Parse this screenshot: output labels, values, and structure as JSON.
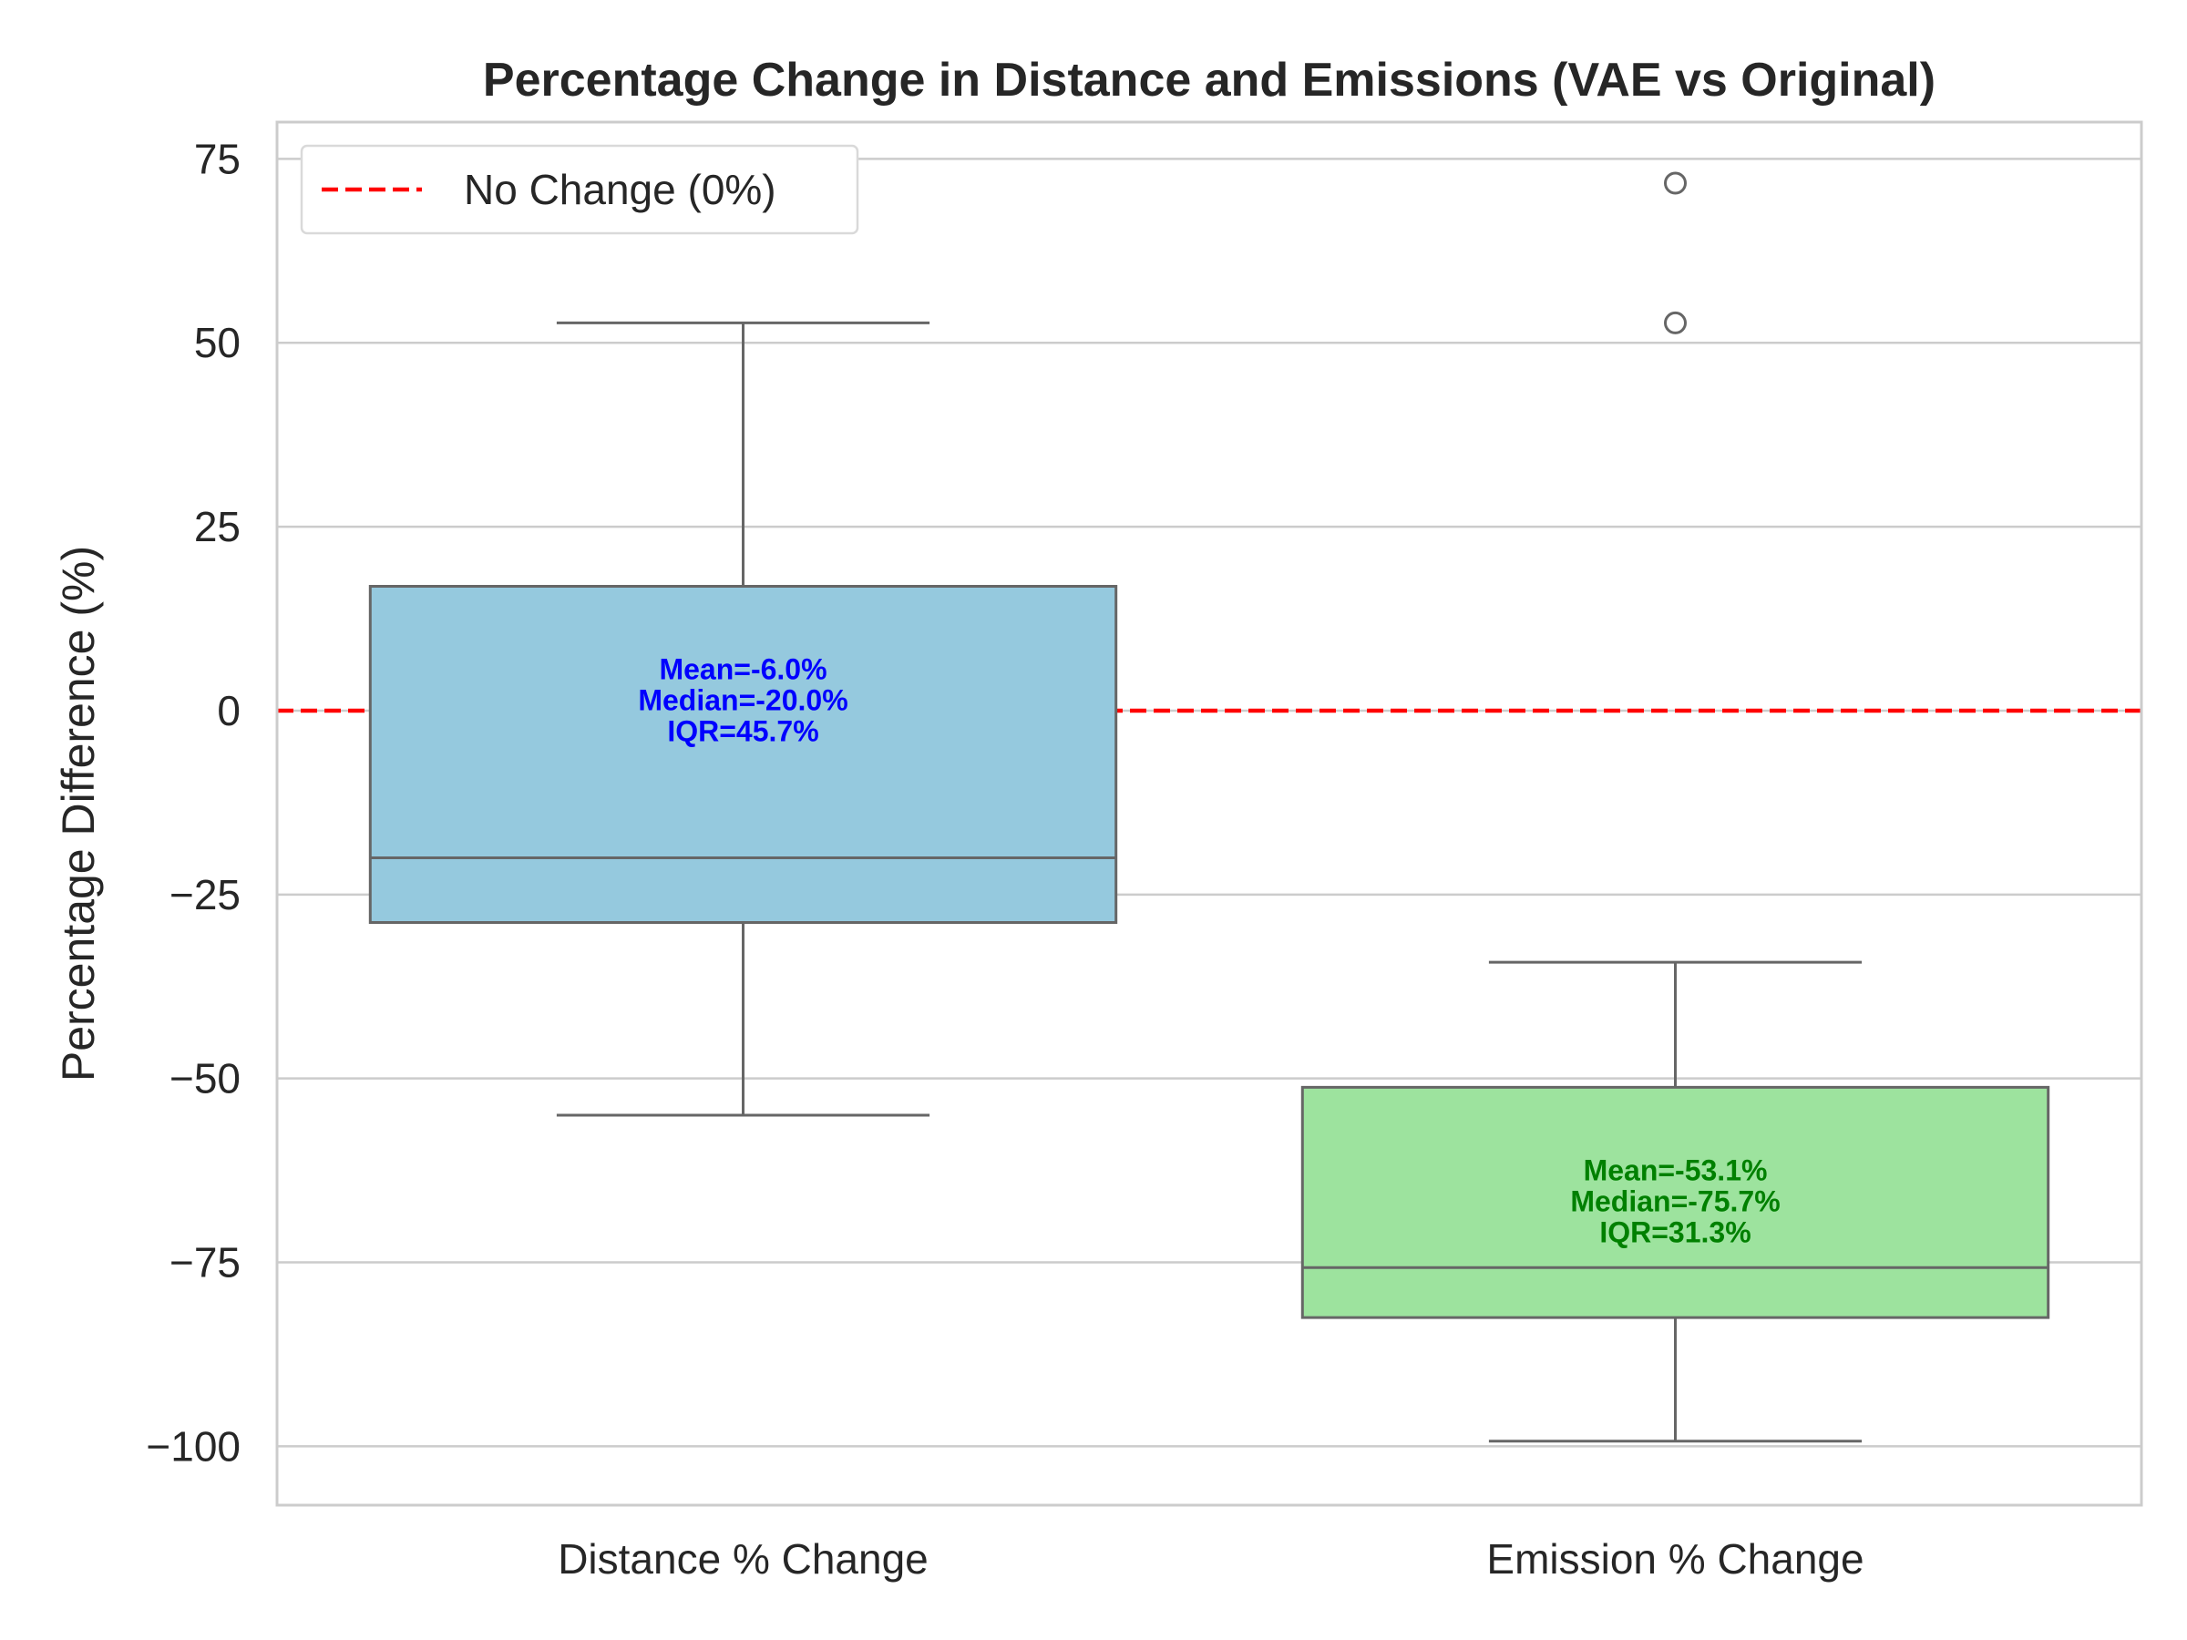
{
  "chart_data": {
    "type": "box",
    "title": "Percentage Change in Distance and Emissions (VAE vs Original)",
    "xlabel": "",
    "ylabel": "Percentage Difference (%)",
    "ylim": [
      -108,
      80
    ],
    "yticks": [
      75,
      50,
      25,
      0,
      -25,
      -50,
      -75,
      -100
    ],
    "ytick_labels": [
      "75",
      "50",
      "25",
      "0",
      "−25",
      "−50",
      "−75",
      "−100"
    ],
    "grid": true,
    "categories": [
      "Distance % Change",
      "Emission % Change"
    ],
    "boxes": [
      {
        "category": "Distance % Change",
        "whisker_low": -55,
        "q1": -28.8,
        "median": -20.0,
        "q3": 16.9,
        "whisker_high": 52.7,
        "outliers": [],
        "color": "#95c9de",
        "annotation_color": "#0000ff",
        "annotation": [
          "Mean=-6.0%",
          "Median=-20.0%",
          "IQR=45.7%"
        ]
      },
      {
        "category": "Emission % Change",
        "whisker_low": -99.3,
        "q1": -82.5,
        "median": -75.7,
        "q3": -51.2,
        "whisker_high": -34.2,
        "outliers": [
          71.7,
          52.7
        ],
        "color": "#9de39e",
        "annotation_color": "#008000",
        "annotation": [
          "Mean=-53.1%",
          "Median=-75.7%",
          "IQR=31.3%"
        ]
      }
    ],
    "reference_line": {
      "y": 0,
      "color": "#ff0000",
      "label": "No Change (0%)"
    },
    "legend": {
      "position": "top-left",
      "entries": [
        "No Change (0%)"
      ]
    }
  }
}
